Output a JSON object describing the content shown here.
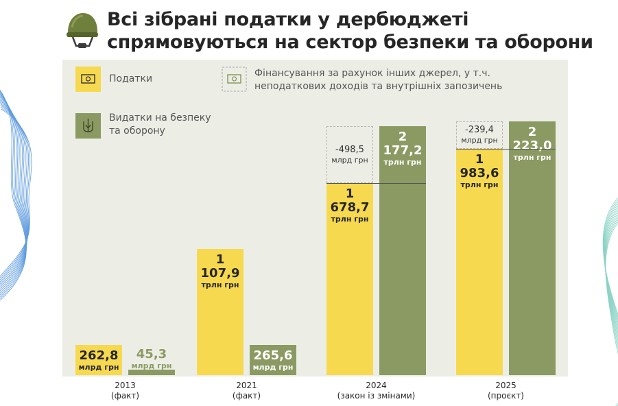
{
  "title_line1": "Всі зібрані податки у дербюджеті",
  "title_line2": "спрямовуються на сектор безпеки та оборони",
  "legend": {
    "taxes": "Податки",
    "other_sources_line1": "Фінансування за рахунок інших джерел, у т.ч.",
    "other_sources_line2": "неподаткових доходів та внутрішніх запозичень",
    "defense_line1": "Видатки на безпеку",
    "defense_line2": "та оборону"
  },
  "colors": {
    "taxes": "#f7d94f",
    "defense": "#8b9a62",
    "panel": "#eceee6"
  },
  "chart_data": {
    "type": "bar",
    "categories": [
      {
        "year": "2013",
        "note": "(факт)"
      },
      {
        "year": "2021",
        "note": "(факт)"
      },
      {
        "year": "2024",
        "note": "(закон із змінами)"
      },
      {
        "year": "2025",
        "note": "(проєкт)"
      }
    ],
    "series": [
      {
        "name": "Податки",
        "values": [
          262.8,
          1107.9,
          1678.7,
          1983.6
        ],
        "labels": [
          {
            "value": "262,8",
            "unit": "млрд грн"
          },
          {
            "value": "1 107,9",
            "unit": "трлн грн"
          },
          {
            "value": "1 678,7",
            "unit": "трлн грн"
          },
          {
            "value": "1 983,6",
            "unit": "трлн грн"
          }
        ]
      },
      {
        "name": "Видатки на безпеку та оборону",
        "values": [
          45.3,
          265.6,
          2177.2,
          2223.0
        ],
        "labels": [
          {
            "value": "45,3",
            "unit": "млрд грн"
          },
          {
            "value": "265,6",
            "unit": "млрд грн"
          },
          {
            "value": "2 177,2",
            "unit": "трлн грн"
          },
          {
            "value": "2 223,0",
            "unit": "трлн грн"
          }
        ]
      }
    ],
    "gaps": [
      {
        "category": "2024",
        "value": -498.5,
        "label": "-498,5",
        "unit": "млрд грн"
      },
      {
        "category": "2025",
        "value": -239.4,
        "label": "-239,4",
        "unit": "млрд грн"
      }
    ]
  }
}
